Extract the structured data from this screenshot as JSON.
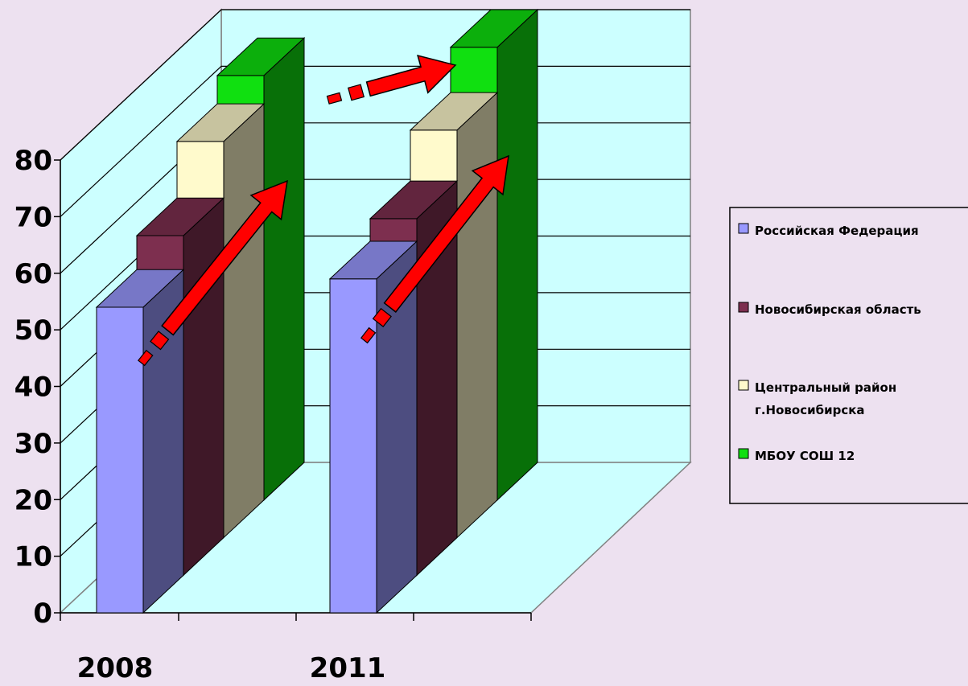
{
  "chart_data": {
    "type": "bar",
    "title": "",
    "xlabel": "",
    "ylabel": "",
    "categories": [
      "2008",
      "2011"
    ],
    "ylim": [
      0,
      80
    ],
    "yticks": [
      0,
      10,
      20,
      30,
      40,
      50,
      60,
      70,
      80
    ],
    "grid": true,
    "three_d": true,
    "legend_position": "right",
    "series": [
      {
        "name": "Российская Федерация",
        "values": [
          54,
          59
        ],
        "color": "#9999ff"
      },
      {
        "name": "Новосибирская область",
        "values": [
          60,
          63
        ],
        "color": "#7d2f4f"
      },
      {
        "name": "Центральный район г.Новосибирска",
        "values": [
          70,
          72
        ],
        "color": "#fffacc"
      },
      {
        "name": "МБОУ    СОШ 12",
        "values": [
          75,
          80
        ],
        "color": "#10e010"
      }
    ],
    "annotations": [
      "red-arrow",
      "red-arrow",
      "red-arrow"
    ]
  },
  "colors": {
    "background": "#ede1f0",
    "plot_wall": "#ccffff",
    "gridline": "#000000",
    "arrow": "#ff0000"
  }
}
